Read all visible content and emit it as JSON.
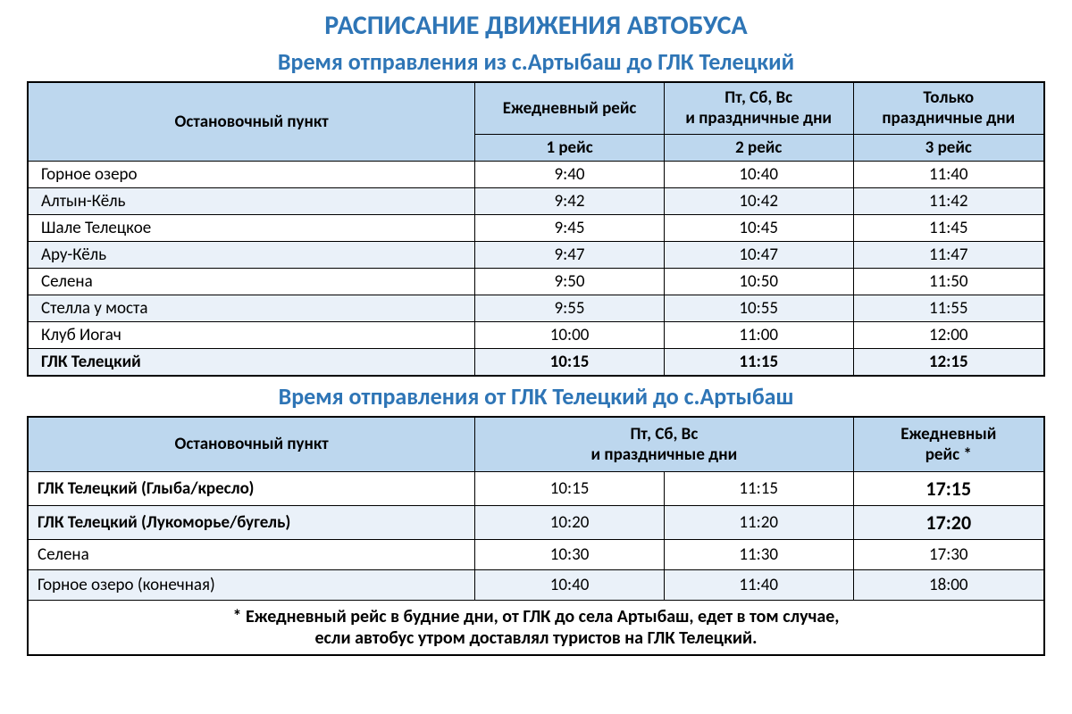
{
  "colors": {
    "title_color": "#2E75B6",
    "header_bg": "#BDD7EE",
    "row_even_bg": "#EAF1F9",
    "row_odd_bg": "#ffffff",
    "border_color": "#000000"
  },
  "main_title": "РАСПИСАНИЕ ДВИЖЕНИЯ АВТОБУСА",
  "table1": {
    "subtitle": "Время отправления из с.Артыбаш до ГЛК Телецкий",
    "stop_header": "Остановочный пункт",
    "col_headers_top": [
      "Ежедневный рейс",
      "Пт, Сб, Вс\nи праздничные дни",
      "Только\nпраздничные дни"
    ],
    "col_headers_bot": [
      "1 рейс",
      "2 рейс",
      "3 рейс"
    ],
    "rows": [
      {
        "stop": "Горное озеро",
        "t1": "9:40",
        "t2": "10:40",
        "t3": "11:40",
        "bold": false
      },
      {
        "stop": "Алтын-Кёль",
        "t1": "9:42",
        "t2": "10:42",
        "t3": "11:42",
        "bold": false
      },
      {
        "stop": "Шале Телецкое",
        "t1": "9:45",
        "t2": "10:45",
        "t3": "11:45",
        "bold": false
      },
      {
        "stop": "Ару-Кёль",
        "t1": "9:47",
        "t2": "10:47",
        "t3": "11:47",
        "bold": false
      },
      {
        "stop": "Селена",
        "t1": "9:50",
        "t2": "10:50",
        "t3": "11:50",
        "bold": false
      },
      {
        "stop": "Стелла у моста",
        "t1": "9:55",
        "t2": "10:55",
        "t3": "11:55",
        "bold": false
      },
      {
        "stop": "Клуб Иогач",
        "t1": "10:00",
        "t2": "11:00",
        "t3": "12:00",
        "bold": false
      },
      {
        "stop": "ГЛК Телецкий",
        "t1": "10:15",
        "t2": "11:15",
        "t3": "12:15",
        "bold": true
      }
    ],
    "col_widths": [
      "44%",
      "18.6%",
      "18.6%",
      "18.8%"
    ]
  },
  "table2": {
    "subtitle": "Время отправления от ГЛК Телецкий до с.Артыбаш",
    "stop_header": "Остановочный пункт",
    "col_headers_top": [
      "Пт, Сб, Вс\nи праздничные дни",
      "Ежедневный\nрейс *"
    ],
    "col_spans": [
      2,
      1
    ],
    "rows": [
      {
        "stop": "ГЛК Телецкий (Глыба/кресло)",
        "t1": "10:15",
        "t2": "11:15",
        "t3": "17:15",
        "stop_bold": true,
        "t3_bold": true
      },
      {
        "stop": "ГЛК Телецкий (Лукоморье/бугель)",
        "t1": "10:20",
        "t2": "11:20",
        "t3": "17:20",
        "stop_bold": true,
        "t3_bold": true
      },
      {
        "stop": "Селена",
        "t1": "10:30",
        "t2": "11:30",
        "t3": "17:30",
        "stop_bold": false,
        "t3_bold": false
      },
      {
        "stop": "Горное озеро (конечная)",
        "t1": "10:40",
        "t2": "11:40",
        "t3": "18:00",
        "stop_bold": false,
        "t3_bold": false
      }
    ],
    "col_widths": [
      "44%",
      "18.6%",
      "18.6%",
      "18.8%"
    ],
    "footnote": "* Ежедневный рейс в будние дни, от ГЛК до села Артыбаш, едет в том случае,\nесли автобус утром доставлял туристов на ГЛК Телецкий."
  }
}
